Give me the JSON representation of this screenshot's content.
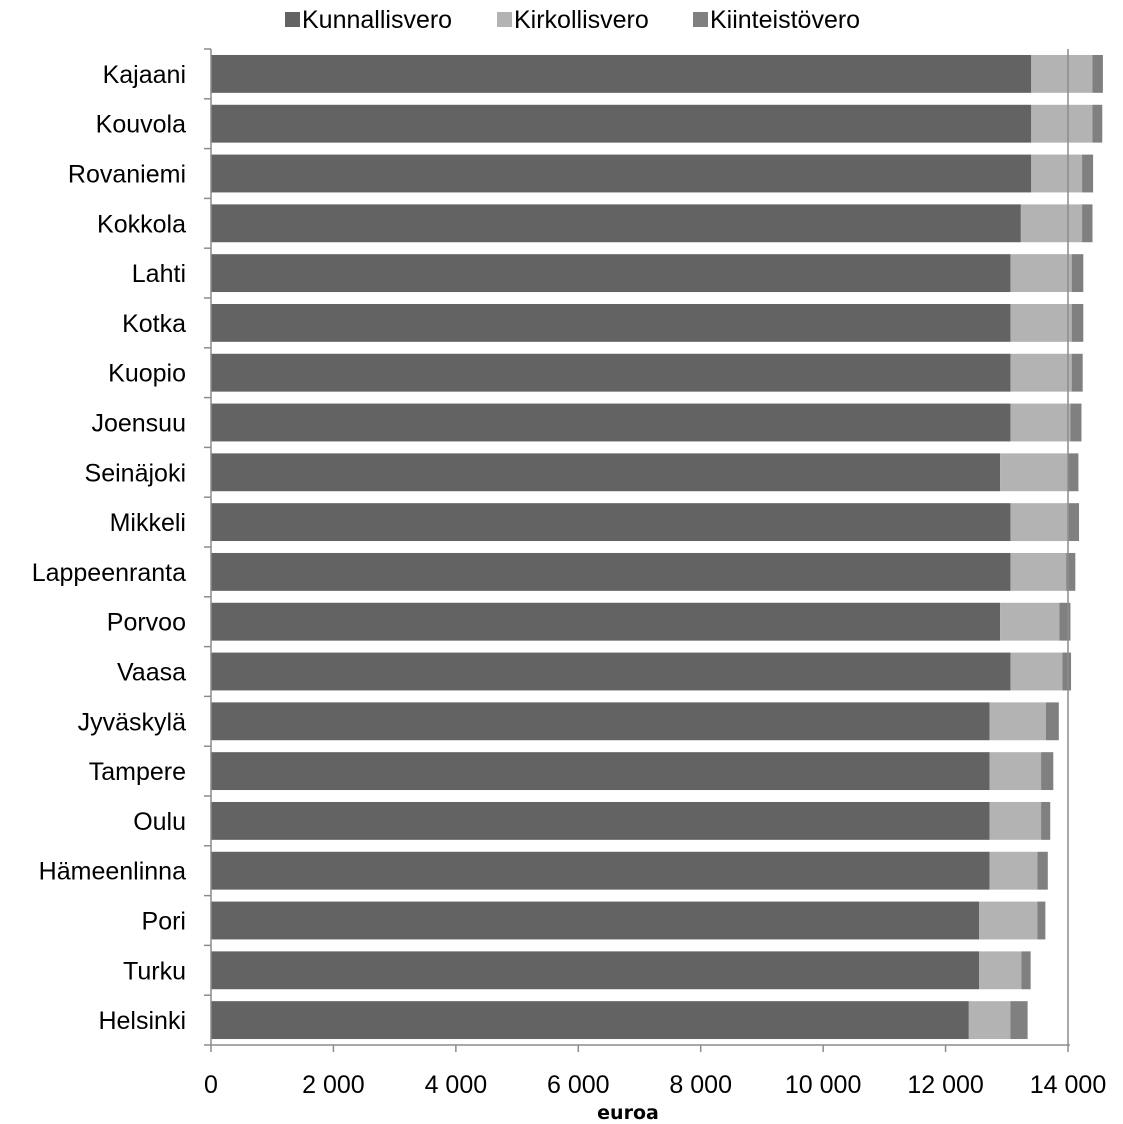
{
  "chart_data": {
    "type": "bar",
    "orientation": "horizontal",
    "stacked": true,
    "title": "",
    "xlabel": "euroa",
    "ylabel": "",
    "xlim": [
      0,
      14000
    ],
    "x_ticks": [
      0,
      2000,
      4000,
      6000,
      8000,
      10000,
      12000,
      14000
    ],
    "x_tick_labels": [
      "0",
      "2 000",
      "4 000",
      "6 000",
      "8 000",
      "10 000",
      "12 000",
      "14 000"
    ],
    "grid": false,
    "reference_line_x": 14000,
    "legend_position": "top",
    "categories": [
      "Kajaani",
      "Kouvola",
      "Rovaniemi",
      "Kokkola",
      "Lahti",
      "Kotka",
      "Kuopio",
      "Joensuu",
      "Seinäjoki",
      "Mikkeli",
      "Lappeenranta",
      "Porvoo",
      "Vaasa",
      "Jyväskylä",
      "Tampere",
      "Oulu",
      "Hämeenlinna",
      "Pori",
      "Turku",
      "Helsinki"
    ],
    "series": [
      {
        "name": "Kunnallisvero",
        "color": "#636363",
        "values": [
          13400,
          13400,
          13400,
          13230,
          13060,
          13060,
          13060,
          13060,
          12890,
          13060,
          13060,
          12890,
          13060,
          12720,
          12720,
          12720,
          12720,
          12550,
          12550,
          12380
        ]
      },
      {
        "name": "Kirkollisvero",
        "color": "#b3b3b3",
        "values": [
          1000,
          1000,
          830,
          1000,
          1000,
          1000,
          1000,
          980,
          1110,
          950,
          910,
          970,
          850,
          920,
          840,
          840,
          780,
          950,
          690,
          680
        ]
      },
      {
        "name": "Kiinteistövero",
        "color": "#808080",
        "values": [
          170,
          160,
          180,
          170,
          190,
          190,
          180,
          180,
          170,
          170,
          150,
          180,
          140,
          210,
          200,
          150,
          170,
          130,
          150,
          280
        ]
      }
    ]
  }
}
